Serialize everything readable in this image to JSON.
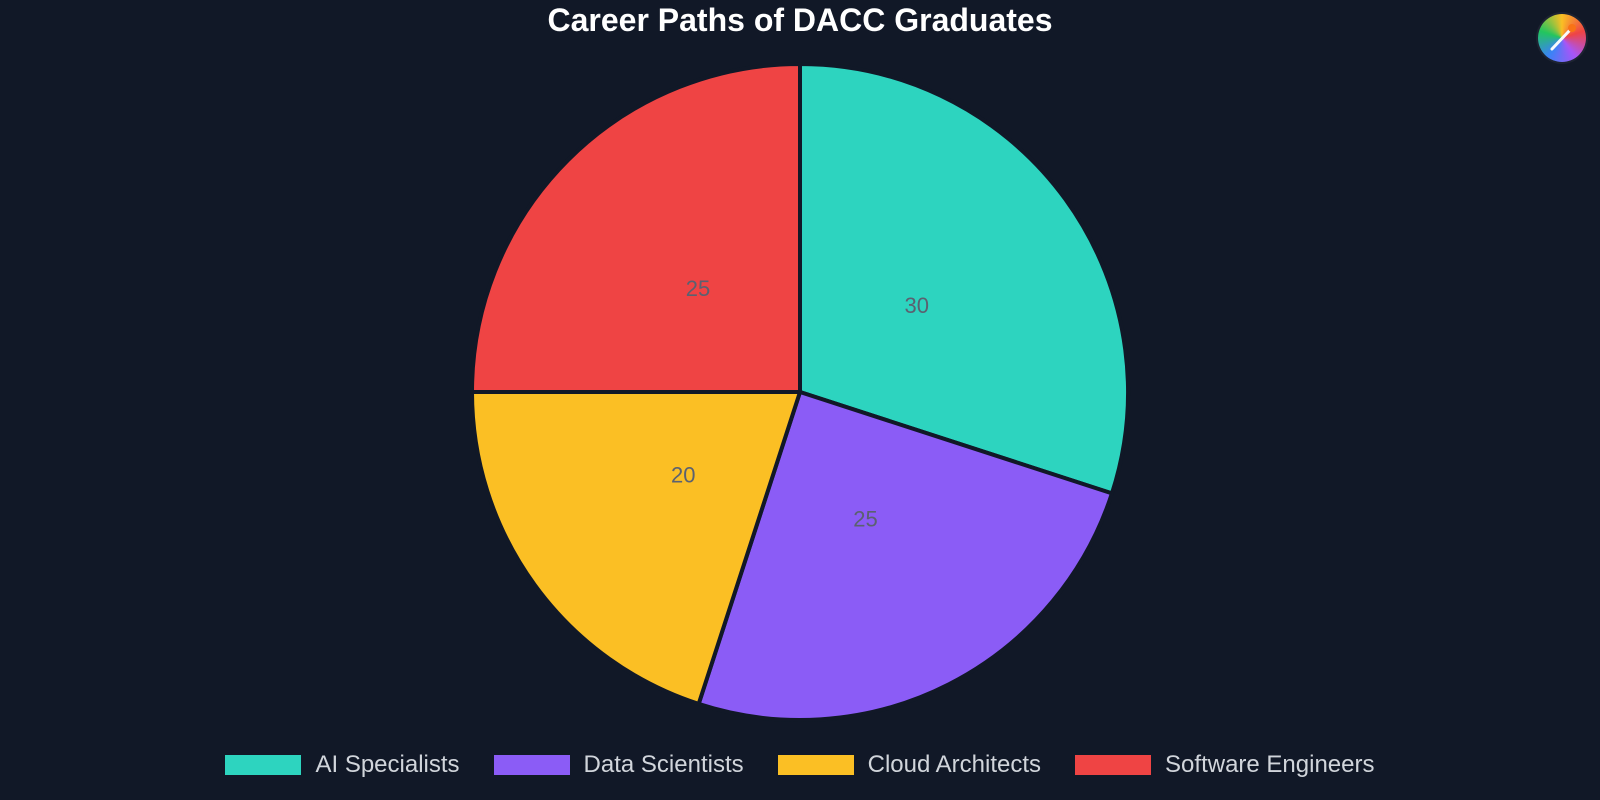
{
  "chart_data": {
    "type": "pie",
    "title": "Career Paths of DACC Graduates",
    "categories": [
      "AI Specialists",
      "Data Scientists",
      "Cloud Architects",
      "Software Engineers"
    ],
    "values": [
      30,
      25,
      20,
      25
    ],
    "colors": [
      "#2dd4bf",
      "#8b5cf6",
      "#fbbf24",
      "#ef4444"
    ],
    "data_labels": [
      "30",
      "25",
      "20",
      "25"
    ],
    "start_angle": "12 o'clock",
    "direction": "clockwise",
    "slice_border_color": "#111827",
    "legend_placement": "bottom"
  },
  "theme": {
    "background": "#111827",
    "title_color": "#ffffff",
    "legend_text_color": "#d1d5db",
    "data_label_color": "#5b6170"
  },
  "avatar": {
    "icon": "paintbrush-icon"
  }
}
